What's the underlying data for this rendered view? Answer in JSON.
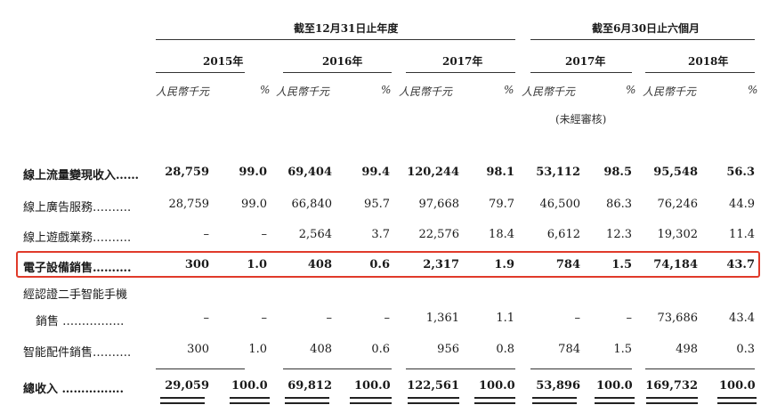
{
  "header": {
    "group1": "截至12月31日止年度",
    "group2": "截至6月30日止六個月",
    "years": [
      "2015年",
      "2016年",
      "2017年",
      "2017年",
      "2018年"
    ],
    "unit_rmb": "人民幣千元",
    "unit_pct": "%",
    "unaudited": "(未經審核)"
  },
  "rows": [
    {
      "label": "線上流量變現收入……",
      "bold": true,
      "values": [
        "28,759",
        "99.0",
        "69,404",
        "99.4",
        "120,244",
        "98.1",
        "53,112",
        "98.5",
        "95,548",
        "56.3"
      ]
    },
    {
      "label": "線上廣告服務……….",
      "bold": false,
      "values": [
        "28,759",
        "99.0",
        "66,840",
        "95.7",
        "97,668",
        "79.7",
        "46,500",
        "86.3",
        "76,246",
        "44.9"
      ]
    },
    {
      "label": "線上遊戲業務……….",
      "bold": false,
      "values": [
        "–",
        "–",
        "2,564",
        "3.7",
        "22,576",
        "18.4",
        "6,612",
        "12.3",
        "19,302",
        "11.4"
      ]
    },
    {
      "label": "電子設備銷售……….",
      "bold": true,
      "values": [
        "300",
        "1.0",
        "408",
        "0.6",
        "2,317",
        "1.9",
        "784",
        "1.5",
        "74,184",
        "43.7"
      ]
    },
    {
      "label": "經認證二手智能手機",
      "label2": "銷售 …………….",
      "bold": false,
      "values": [
        "–",
        "–",
        "–",
        "–",
        "1,361",
        "1.1",
        "–",
        "–",
        "73,686",
        "43.4"
      ]
    },
    {
      "label": "智能配件銷售……….",
      "bold": false,
      "values": [
        "300",
        "1.0",
        "408",
        "0.6",
        "956",
        "0.8",
        "784",
        "1.5",
        "498",
        "0.3"
      ]
    },
    {
      "label": "總收入 …………….",
      "bold": true,
      "values": [
        "29,059",
        "100.0",
        "69,812",
        "100.0",
        "122,561",
        "100.0",
        "53,896",
        "100.0",
        "169,732",
        "100.0"
      ]
    }
  ]
}
